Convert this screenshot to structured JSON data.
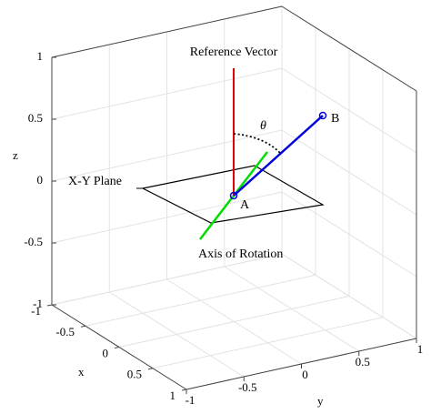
{
  "annotations": {
    "reference": "Reference Vector",
    "theta": "θ",
    "point_b": "B",
    "point_a": "A",
    "plane": "X-Y Plane",
    "axis": "Axis of Rotation"
  },
  "axes": {
    "x_label": "x",
    "y_label": "y",
    "z_label": "z",
    "x_ticks": [
      "-1",
      "-0.5",
      "0",
      "0.5",
      "1"
    ],
    "y_ticks": [
      "-1",
      "-0.5",
      "0",
      "0.5",
      "1"
    ],
    "z_ticks": [
      "-1",
      "-0.5",
      "0",
      "0.5",
      "1"
    ]
  }
}
